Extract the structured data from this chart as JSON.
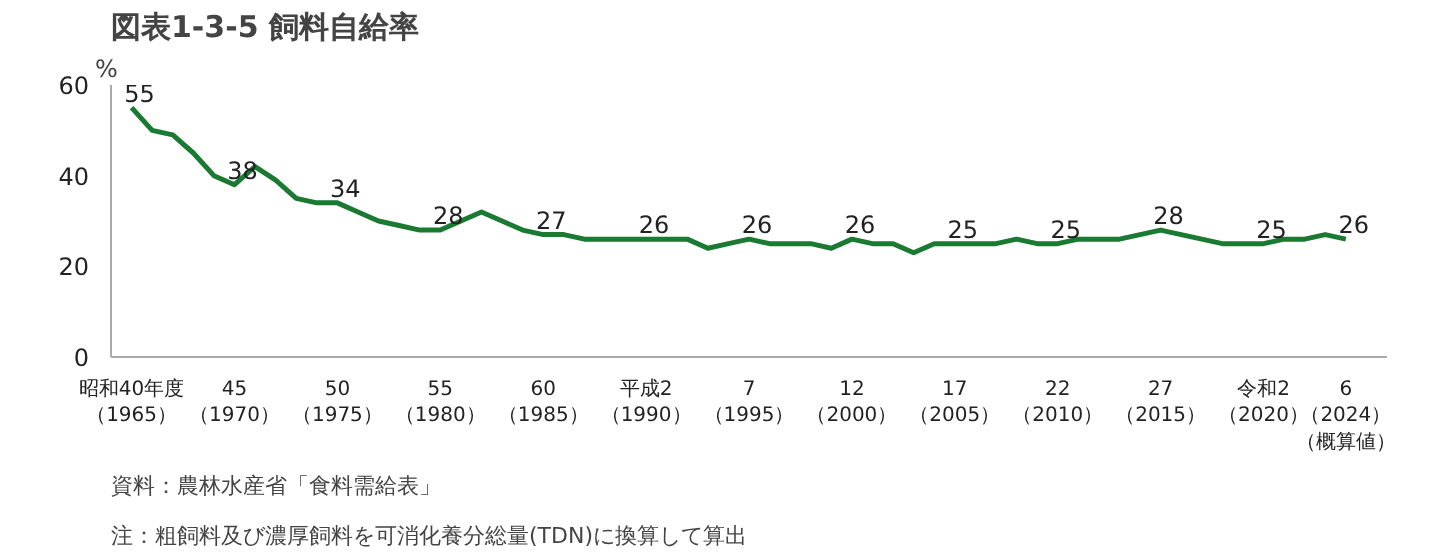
{
  "chart_data": {
    "type": "line",
    "title": "図表1-3-5 飼料自給率",
    "ylabel": "%",
    "categories": [
      "昭和40年度（1965）",
      null,
      null,
      null,
      null,
      "45（1970）",
      null,
      null,
      null,
      null,
      "50（1975）",
      null,
      null,
      null,
      null,
      "55（1980）",
      null,
      null,
      null,
      null,
      "60（1985）",
      null,
      null,
      null,
      null,
      "平成2（1990）",
      null,
      null,
      null,
      null,
      "7（1995）",
      null,
      null,
      null,
      null,
      "12（2000）",
      null,
      null,
      null,
      null,
      "17（2005）",
      null,
      null,
      null,
      null,
      "22（2010）",
      null,
      null,
      null,
      null,
      "27（2015）",
      null,
      null,
      null,
      null,
      "令和2（2020）",
      null,
      null,
      null,
      "6（2024）（概算値）"
    ],
    "series": [
      {
        "color": "#1a7a32",
        "values": [
          55,
          50,
          49,
          45,
          40,
          38,
          42,
          39,
          35,
          34,
          34,
          32,
          30,
          29,
          28,
          28,
          30,
          32,
          30,
          28,
          27,
          27,
          26,
          26,
          26,
          26,
          26,
          26,
          24,
          25,
          26,
          25,
          25,
          25,
          24,
          26,
          25,
          25,
          23,
          25,
          25,
          25,
          25,
          26,
          25,
          25,
          26,
          26,
          26,
          27,
          28,
          27,
          26,
          25,
          25,
          25,
          26,
          26,
          27,
          26
        ],
        "value_labels": [
          "55",
          null,
          null,
          null,
          null,
          "38",
          null,
          null,
          null,
          null,
          "34",
          null,
          null,
          null,
          null,
          "28",
          null,
          null,
          null,
          null,
          "27",
          null,
          null,
          null,
          null,
          "26",
          null,
          null,
          null,
          null,
          "26",
          null,
          null,
          null,
          null,
          "26",
          null,
          null,
          null,
          null,
          "25",
          null,
          null,
          null,
          null,
          "25",
          null,
          null,
          null,
          null,
          "28",
          null,
          null,
          null,
          null,
          "25",
          null,
          null,
          null,
          "26"
        ]
      }
    ],
    "ylim": [
      0,
      60
    ],
    "yticks": [
      0,
      20,
      40,
      60
    ],
    "grid": false,
    "marker": "none",
    "line_style": "solid",
    "annotations": [
      "資料：農林水産省「食料需給表」",
      "注：粗飼料及び濃厚飼料を可消化養分総量(TDN)に換算して算出"
    ]
  }
}
